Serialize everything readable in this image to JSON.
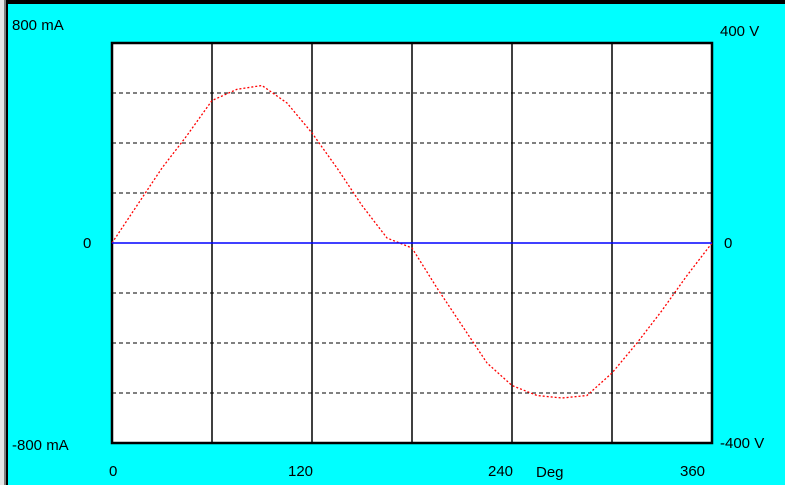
{
  "window": {
    "left_edge_color": "#e6e6e6",
    "frame_color": "#000000",
    "panel_color": "#00ffff"
  },
  "chart_data": {
    "type": "line",
    "plot_background": "#ffffff",
    "left_axis": {
      "max_label": "800 mA",
      "zero_label": "0",
      "min_label": "-800 mA",
      "ylim": [
        -800,
        800
      ],
      "unit": "mA"
    },
    "right_axis": {
      "max_label": "400 V",
      "zero_label": "0",
      "min_label": "-400 V",
      "ylim": [
        -400,
        400
      ],
      "unit": "V"
    },
    "x_axis": {
      "xlim": [
        0,
        360
      ],
      "unit_label": "Deg",
      "ticks": [
        "0",
        "120",
        "240",
        "360"
      ]
    },
    "vertical_grid_deg": [
      60,
      120,
      180,
      240,
      300
    ],
    "horizontal_grid_ma": [
      -600,
      -400,
      -200,
      200,
      400,
      600
    ],
    "series": [
      {
        "color": "#ff0000",
        "style": "dotted",
        "axis": "left",
        "x": [
          0,
          15,
          30,
          45,
          60,
          75,
          90,
          105,
          120,
          135,
          150,
          165,
          180,
          195,
          210,
          225,
          240,
          255,
          270,
          285,
          300,
          315,
          330,
          345,
          360
        ],
        "y": [
          0,
          150,
          300,
          430,
          570,
          615,
          630,
          560,
          440,
          300,
          150,
          20,
          -20,
          -180,
          -330,
          -480,
          -570,
          -610,
          -620,
          -610,
          -520,
          -400,
          -270,
          -130,
          0
        ]
      },
      {
        "color": "#0000ff",
        "style": "solid",
        "axis": "left",
        "x": [
          0,
          360
        ],
        "y": [
          0,
          0
        ]
      }
    ]
  }
}
